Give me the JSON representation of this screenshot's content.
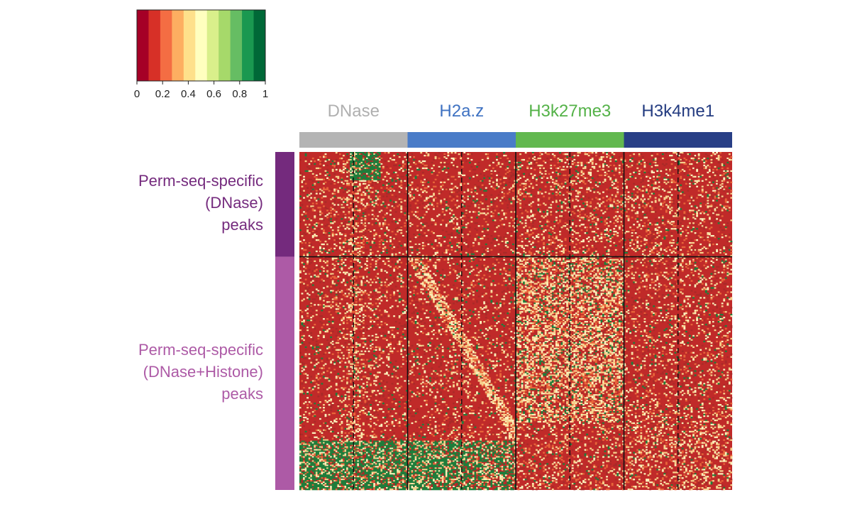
{
  "chart_data": {
    "type": "heatmap",
    "colorbar": {
      "ticks": [
        "0",
        "0.2",
        "0.4",
        "0.6",
        "0.8",
        "1"
      ],
      "range": [
        0,
        1
      ],
      "colors": [
        "#a50026",
        "#d73027",
        "#f46d43",
        "#fdae61",
        "#fee08b",
        "#ffffbf",
        "#d9ef8b",
        "#a6d96a",
        "#66bd63",
        "#1a9850",
        "#006837"
      ]
    },
    "columns": [
      {
        "name": "DNase",
        "color": "#b4b4b4",
        "label_color": "#b0b0b0"
      },
      {
        "name": "H2a.z",
        "color": "#4a7cc8",
        "label_color": "#3f72c2"
      },
      {
        "name": "H3k27me3",
        "color": "#62b84f",
        "label_color": "#54b248"
      },
      {
        "name": "H3k4me1",
        "color": "#283f86",
        "label_color": "#233b80"
      }
    ],
    "row_groups": [
      {
        "lines": [
          "Perm-seq-specific",
          "(DNase)",
          "peaks"
        ],
        "color": "#742a7d",
        "fraction": 0.31
      },
      {
        "lines": [
          "Perm-seq-specific",
          "(DNase+Histone)",
          "peaks"
        ],
        "color": "#ad5aa6",
        "fraction": 0.69
      }
    ],
    "cell_colors": {
      "background": "#c02a29",
      "dark": "#a92a28",
      "mid": "#e8653a",
      "light": "#f7d18c",
      "pale": "#fbf0bb",
      "green": "#1e7d3b"
    }
  }
}
